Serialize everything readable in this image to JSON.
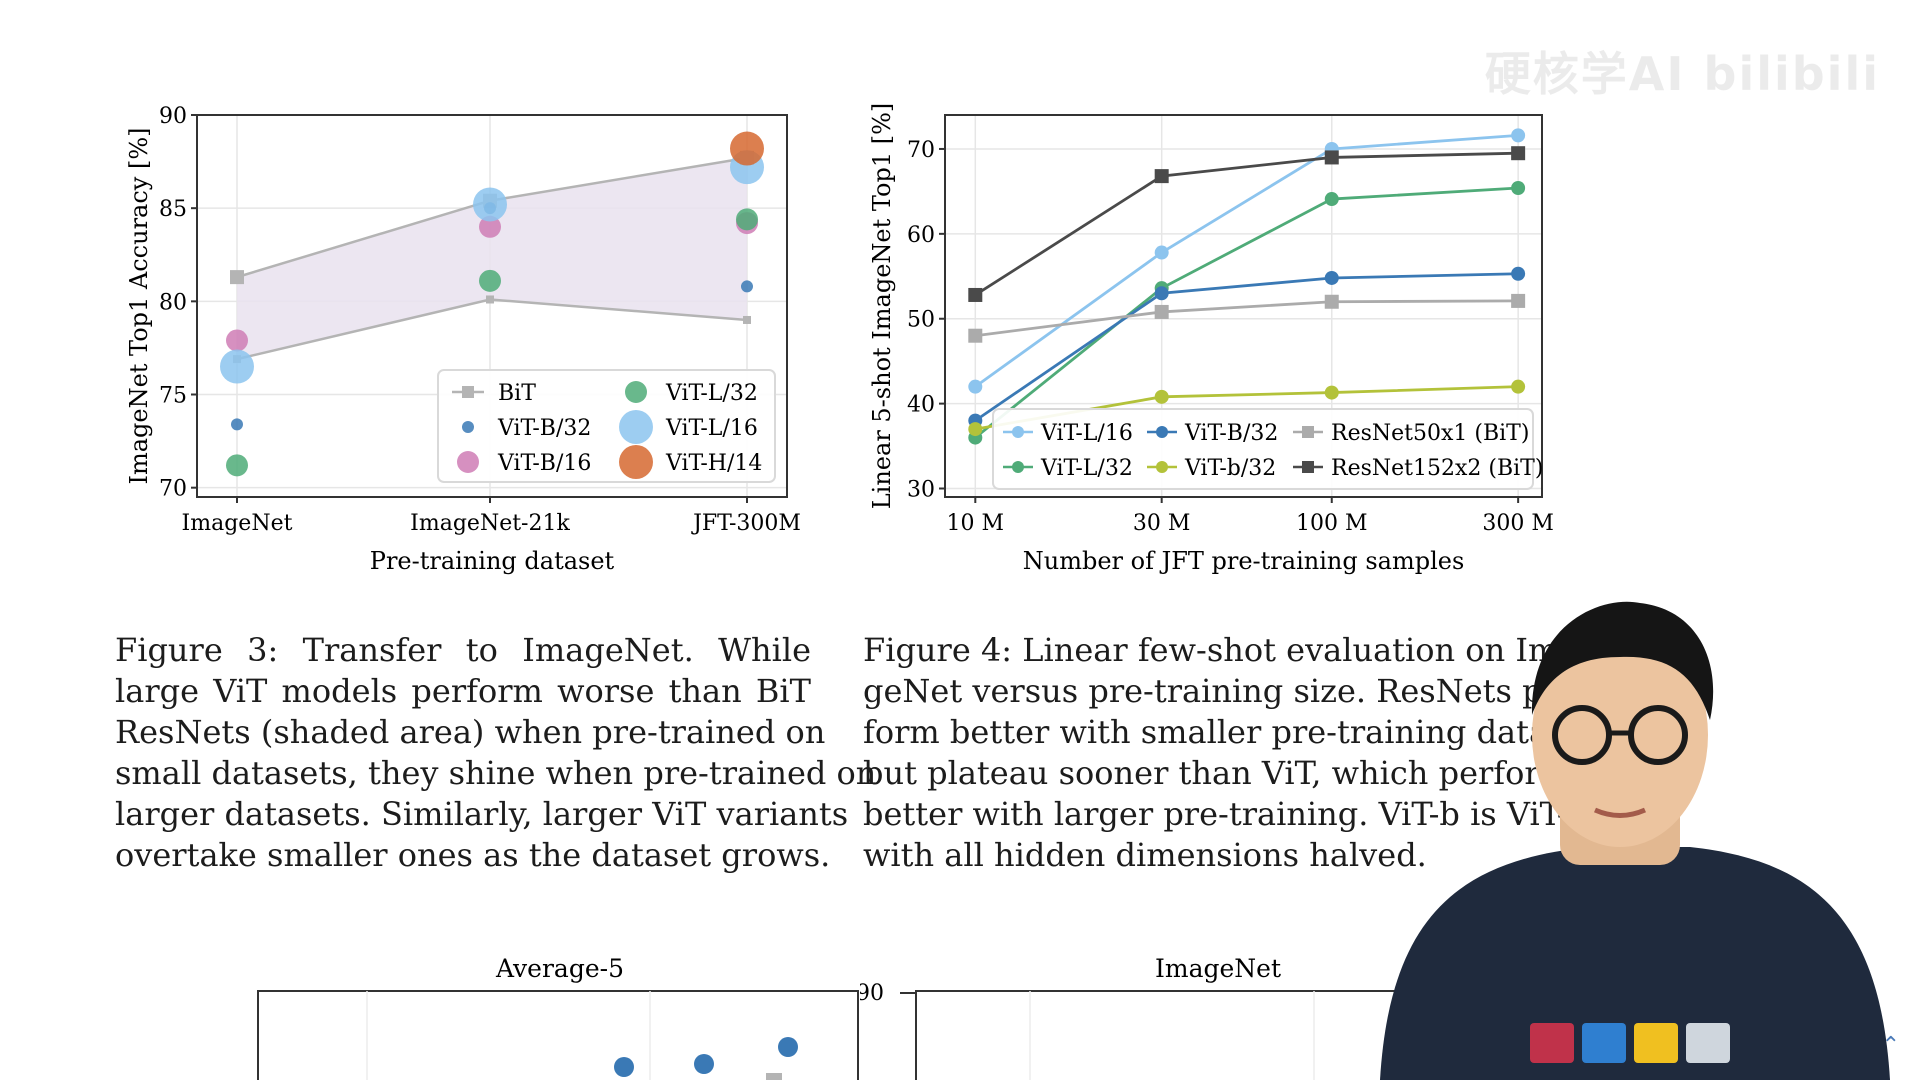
{
  "watermark": "硬核学AI bilibili",
  "colors": {
    "bit": "#b4b4b4",
    "vit_b32": "#3a79b5",
    "vit_b16": "#cf7cb5",
    "vit_l32": "#4fab78",
    "vit_l16": "#8cc4ee",
    "vit_h14": "#d66830",
    "vit_b_small": "#b3c23a",
    "resnet50": "#ababab",
    "resnet152": "#4a4a4a",
    "shade": "#e9e2ef",
    "presenter_shirt": "#1f2a3d"
  },
  "chart_data": [
    {
      "type": "scatter",
      "xlabel": "Pre-training dataset",
      "ylabel": "ImageNet Top1 Accuracy [%]",
      "categories": [
        "ImageNet",
        "ImageNet-21k",
        "JFT-300M"
      ],
      "ylim": [
        69.5,
        90
      ],
      "yticks": [
        70,
        75,
        80,
        85,
        90
      ],
      "grid": true,
      "legend_placement": "lower right",
      "bit_band": {
        "upper": [
          81.3,
          85.4,
          87.7
        ],
        "lower": [
          76.9,
          80.1,
          79.0
        ]
      },
      "series": [
        {
          "name": "BiT",
          "values": [
            81.3,
            85.4,
            87.7
          ],
          "marker": "square"
        },
        {
          "name": "ViT-B/32",
          "values": [
            73.4,
            85.0,
            80.8
          ],
          "size": 1
        },
        {
          "name": "ViT-B/16",
          "values": [
            77.9,
            84.0,
            84.2
          ],
          "size": 2
        },
        {
          "name": "ViT-L/32",
          "values": [
            71.2,
            81.1,
            84.4
          ],
          "size": 2
        },
        {
          "name": "ViT-L/16",
          "values": [
            76.5,
            85.2,
            87.2
          ],
          "size": 3
        },
        {
          "name": "ViT-H/14",
          "values": [
            null,
            null,
            88.2
          ],
          "size": 3
        }
      ],
      "legend": [
        "BiT",
        "ViT-L/32",
        "ViT-B/32",
        "ViT-L/16",
        "ViT-B/16",
        "ViT-H/14"
      ]
    },
    {
      "type": "line",
      "xlabel": "Number of JFT pre-training samples",
      "ylabel": "Linear 5-shot ImageNet Top1 [%]",
      "x": [
        9,
        30,
        90,
        300
      ],
      "xticks": [
        "10 M",
        "30 M",
        "100 M",
        "300 M"
      ],
      "xscale": "log",
      "ylim": [
        29,
        74
      ],
      "yticks": [
        30,
        40,
        50,
        60,
        70
      ],
      "grid": true,
      "legend_placement": "lower right",
      "series": [
        {
          "name": "ViT-L/16",
          "values": [
            42.0,
            57.8,
            70.0,
            71.6
          ],
          "marker": "circle"
        },
        {
          "name": "ViT-L/32",
          "values": [
            36.0,
            53.6,
            64.1,
            65.4
          ],
          "marker": "circle"
        },
        {
          "name": "ViT-B/32",
          "values": [
            38.0,
            53.0,
            54.8,
            55.3
          ],
          "marker": "circle"
        },
        {
          "name": "ViT-b/32",
          "values": [
            37.0,
            40.8,
            41.3,
            42.0
          ],
          "marker": "circle"
        },
        {
          "name": "ResNet50x1 (BiT)",
          "values": [
            48.0,
            50.8,
            52.0,
            52.1
          ],
          "marker": "square"
        },
        {
          "name": "ResNet152x2 (BiT)",
          "values": [
            52.8,
            66.8,
            69.0,
            69.5
          ],
          "marker": "square"
        }
      ],
      "legend": [
        "ViT-L/16",
        "ViT-B/32",
        "ResNet50x1 (BiT)",
        "ViT-L/32",
        "ViT-b/32",
        "ResNet152x2 (BiT)"
      ]
    },
    {
      "type": "scatter",
      "title": "Average-5",
      "partial": true
    },
    {
      "type": "scatter",
      "title": "ImageNet",
      "partial": true,
      "yticks": [
        90
      ]
    }
  ],
  "captions": {
    "fig3": [
      "Figure 3:  Transfer to ImageNet.   While",
      "large ViT models perform worse than BiT",
      "ResNets (shaded area) when pre-trained on",
      "small datasets, they shine when pre-trained on",
      "larger datasets.  Similarly, larger ViT variants",
      "overtake smaller ones as the dataset grows."
    ],
    "fig4": [
      "Figure 4:  Linear few-shot evaluation on Ima",
      "geNet versus pre-training size.  ResNets pe",
      "form better with smaller pre-training datase",
      "but plateau sooner than ViT, which perform",
      "better with larger pre-training. ViT-b is ViT-B",
      "with all hidden dimensions halved."
    ]
  }
}
